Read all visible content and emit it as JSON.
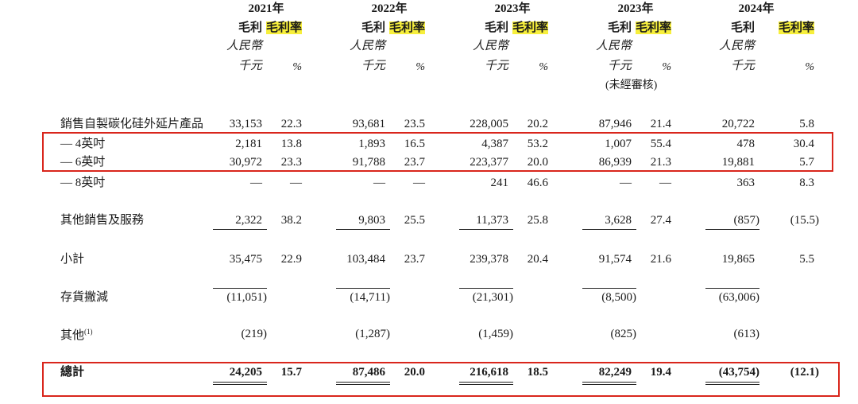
{
  "years": [
    "2021年",
    "2022年",
    "2023年",
    "2023年",
    "2024年"
  ],
  "col_headers": {
    "gross_profit": "毛利",
    "gross_margin": "毛利率",
    "currency": "人民幣",
    "unit_thousand": "千元",
    "unit_pct": "%",
    "unaudited": "(未經審核)"
  },
  "rows": [
    {
      "label": "銷售自製碳化硅外延片產品",
      "values": [
        "33,153",
        "22.3",
        "93,681",
        "23.5",
        "228,005",
        "20.2",
        "87,946",
        "21.4",
        "20,722",
        "5.8"
      ]
    },
    {
      "label": "— 4英吋",
      "values": [
        "2,181",
        "13.8",
        "1,893",
        "16.5",
        "4,387",
        "53.2",
        "1,007",
        "55.4",
        "478",
        "30.4"
      ]
    },
    {
      "label": "— 6英吋",
      "values": [
        "30,972",
        "23.3",
        "91,788",
        "23.7",
        "223,377",
        "20.0",
        "86,939",
        "21.3",
        "19,881",
        "5.7"
      ]
    },
    {
      "label": "— 8英吋",
      "values": [
        "—",
        "—",
        "—",
        "—",
        "241",
        "46.6",
        "—",
        "—",
        "363",
        "8.3"
      ]
    },
    {
      "label": "其他銷售及服務",
      "values": [
        "2,322",
        "38.2",
        "9,803",
        "25.5",
        "11,373",
        "25.8",
        "3,628",
        "27.4",
        "(857)",
        "(15.5)"
      ]
    },
    {
      "label": "小計",
      "values": [
        "35,475",
        "22.9",
        "103,484",
        "23.7",
        "239,378",
        "20.4",
        "91,574",
        "21.6",
        "19,865",
        "5.5"
      ]
    },
    {
      "label": "存貨撇減",
      "values": [
        "(11,051)",
        "",
        "(14,711)",
        "",
        "(21,301)",
        "",
        "(8,500)",
        "",
        "(63,006)",
        ""
      ]
    },
    {
      "label": "其他",
      "label_sup": "(1)",
      "values": [
        "(219)",
        "",
        "(1,287)",
        "",
        "(1,459)",
        "",
        "(825)",
        "",
        "(613)",
        ""
      ]
    },
    {
      "label": "總計",
      "values": [
        "24,205",
        "15.7",
        "87,486",
        "20.0",
        "216,618",
        "18.5",
        "82,249",
        "19.4",
        "(43,754)",
        "(12.1)"
      ]
    }
  ]
}
